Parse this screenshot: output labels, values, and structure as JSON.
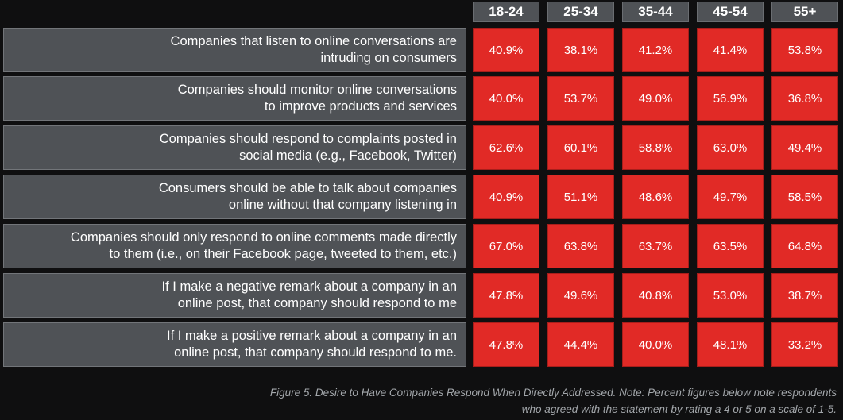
{
  "chart_data": {
    "type": "table",
    "columns": [
      "18-24",
      "25-34",
      "35-44",
      "45-54",
      "55+"
    ],
    "rows": [
      {
        "label": "Companies that listen to online conversations are\nintruding on consumers",
        "values": [
          "40.9%",
          "38.1%",
          "41.2%",
          "41.4%",
          "53.8%"
        ]
      },
      {
        "label": "Companies should monitor online conversations\nto improve products and services",
        "values": [
          "40.0%",
          "53.7%",
          "49.0%",
          "56.9%",
          "36.8%"
        ]
      },
      {
        "label": "Companies should respond to complaints posted in\nsocial media (e.g., Facebook, Twitter)",
        "values": [
          "62.6%",
          "60.1%",
          "58.8%",
          "63.0%",
          "49.4%"
        ]
      },
      {
        "label": "Consumers should be able to talk about companies\nonline without that company listening in",
        "values": [
          "40.9%",
          "51.1%",
          "48.6%",
          "49.7%",
          "58.5%"
        ]
      },
      {
        "label": "Companies should only respond to online comments made directly\nto them (i.e., on their Facebook page, tweeted to them, etc.)",
        "values": [
          "67.0%",
          "63.8%",
          "63.7%",
          "63.5%",
          "64.8%"
        ]
      },
      {
        "label": "If I make a negative remark about a company in an\nonline post, that company should respond to me",
        "values": [
          "47.8%",
          "49.6%",
          "40.8%",
          "53.0%",
          "38.7%"
        ]
      },
      {
        "label": "If I make a positive remark about a company in an\nonline post, that company should respond to me.",
        "values": [
          "47.8%",
          "44.4%",
          "40.0%",
          "48.1%",
          "33.2%"
        ]
      }
    ],
    "colors": {
      "header_bg": "#4f5256",
      "label_bg": "#4f5256",
      "cell_bg": "#e12a26",
      "page_bg": "#0f0f10",
      "caption": "#a3a7ab"
    }
  },
  "caption": "Figure 5. Desire to Have Companies Respond When Directly Addressed.  Note: Percent figures below note respondents\nwho agreed with the statement by rating a 4 or 5 on a scale of 1-5."
}
